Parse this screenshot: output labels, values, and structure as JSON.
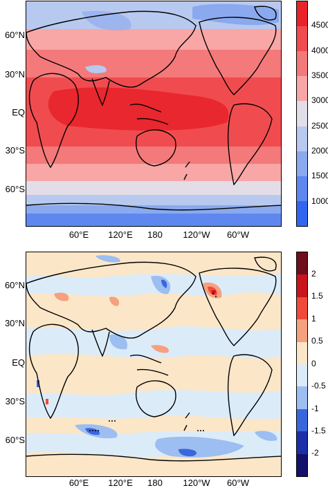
{
  "top_panel": {
    "lat_labels": [
      "60°N",
      "30°N",
      "EQ",
      "30°S",
      "60°S"
    ],
    "lon_labels": [
      "60°E",
      "120°E",
      "180",
      "120°W",
      "60°W"
    ],
    "colorbar": {
      "ticks": [
        "4500",
        "4000",
        "3500",
        "3000",
        "2500",
        "2000",
        "1500",
        "1000"
      ],
      "colors": [
        "#e8242a",
        "#f04c4f",
        "#f4797a",
        "#f8a6a6",
        "#e3dde8",
        "#b8c9ef",
        "#8aa9ee",
        "#5e88ef",
        "#3366f0"
      ]
    }
  },
  "bottom_panel": {
    "lat_labels": [
      "60°N",
      "30°N",
      "EQ",
      "30°S",
      "60°S"
    ],
    "lon_labels": [
      "60°E",
      "120°E",
      "180",
      "120°W",
      "60°W"
    ],
    "colorbar": {
      "ticks": [
        "2",
        "1.5",
        "1",
        "0.5",
        "0",
        "-0.5",
        "-1",
        "-1.5",
        "-2"
      ],
      "colors": [
        "#6d0f1c",
        "#c8141c",
        "#ef4a3a",
        "#f6a07e",
        "#fbe6c8",
        "#dcebf8",
        "#9cbef0",
        "#3a66dd",
        "#1a2fa8",
        "#14116a"
      ]
    }
  }
}
